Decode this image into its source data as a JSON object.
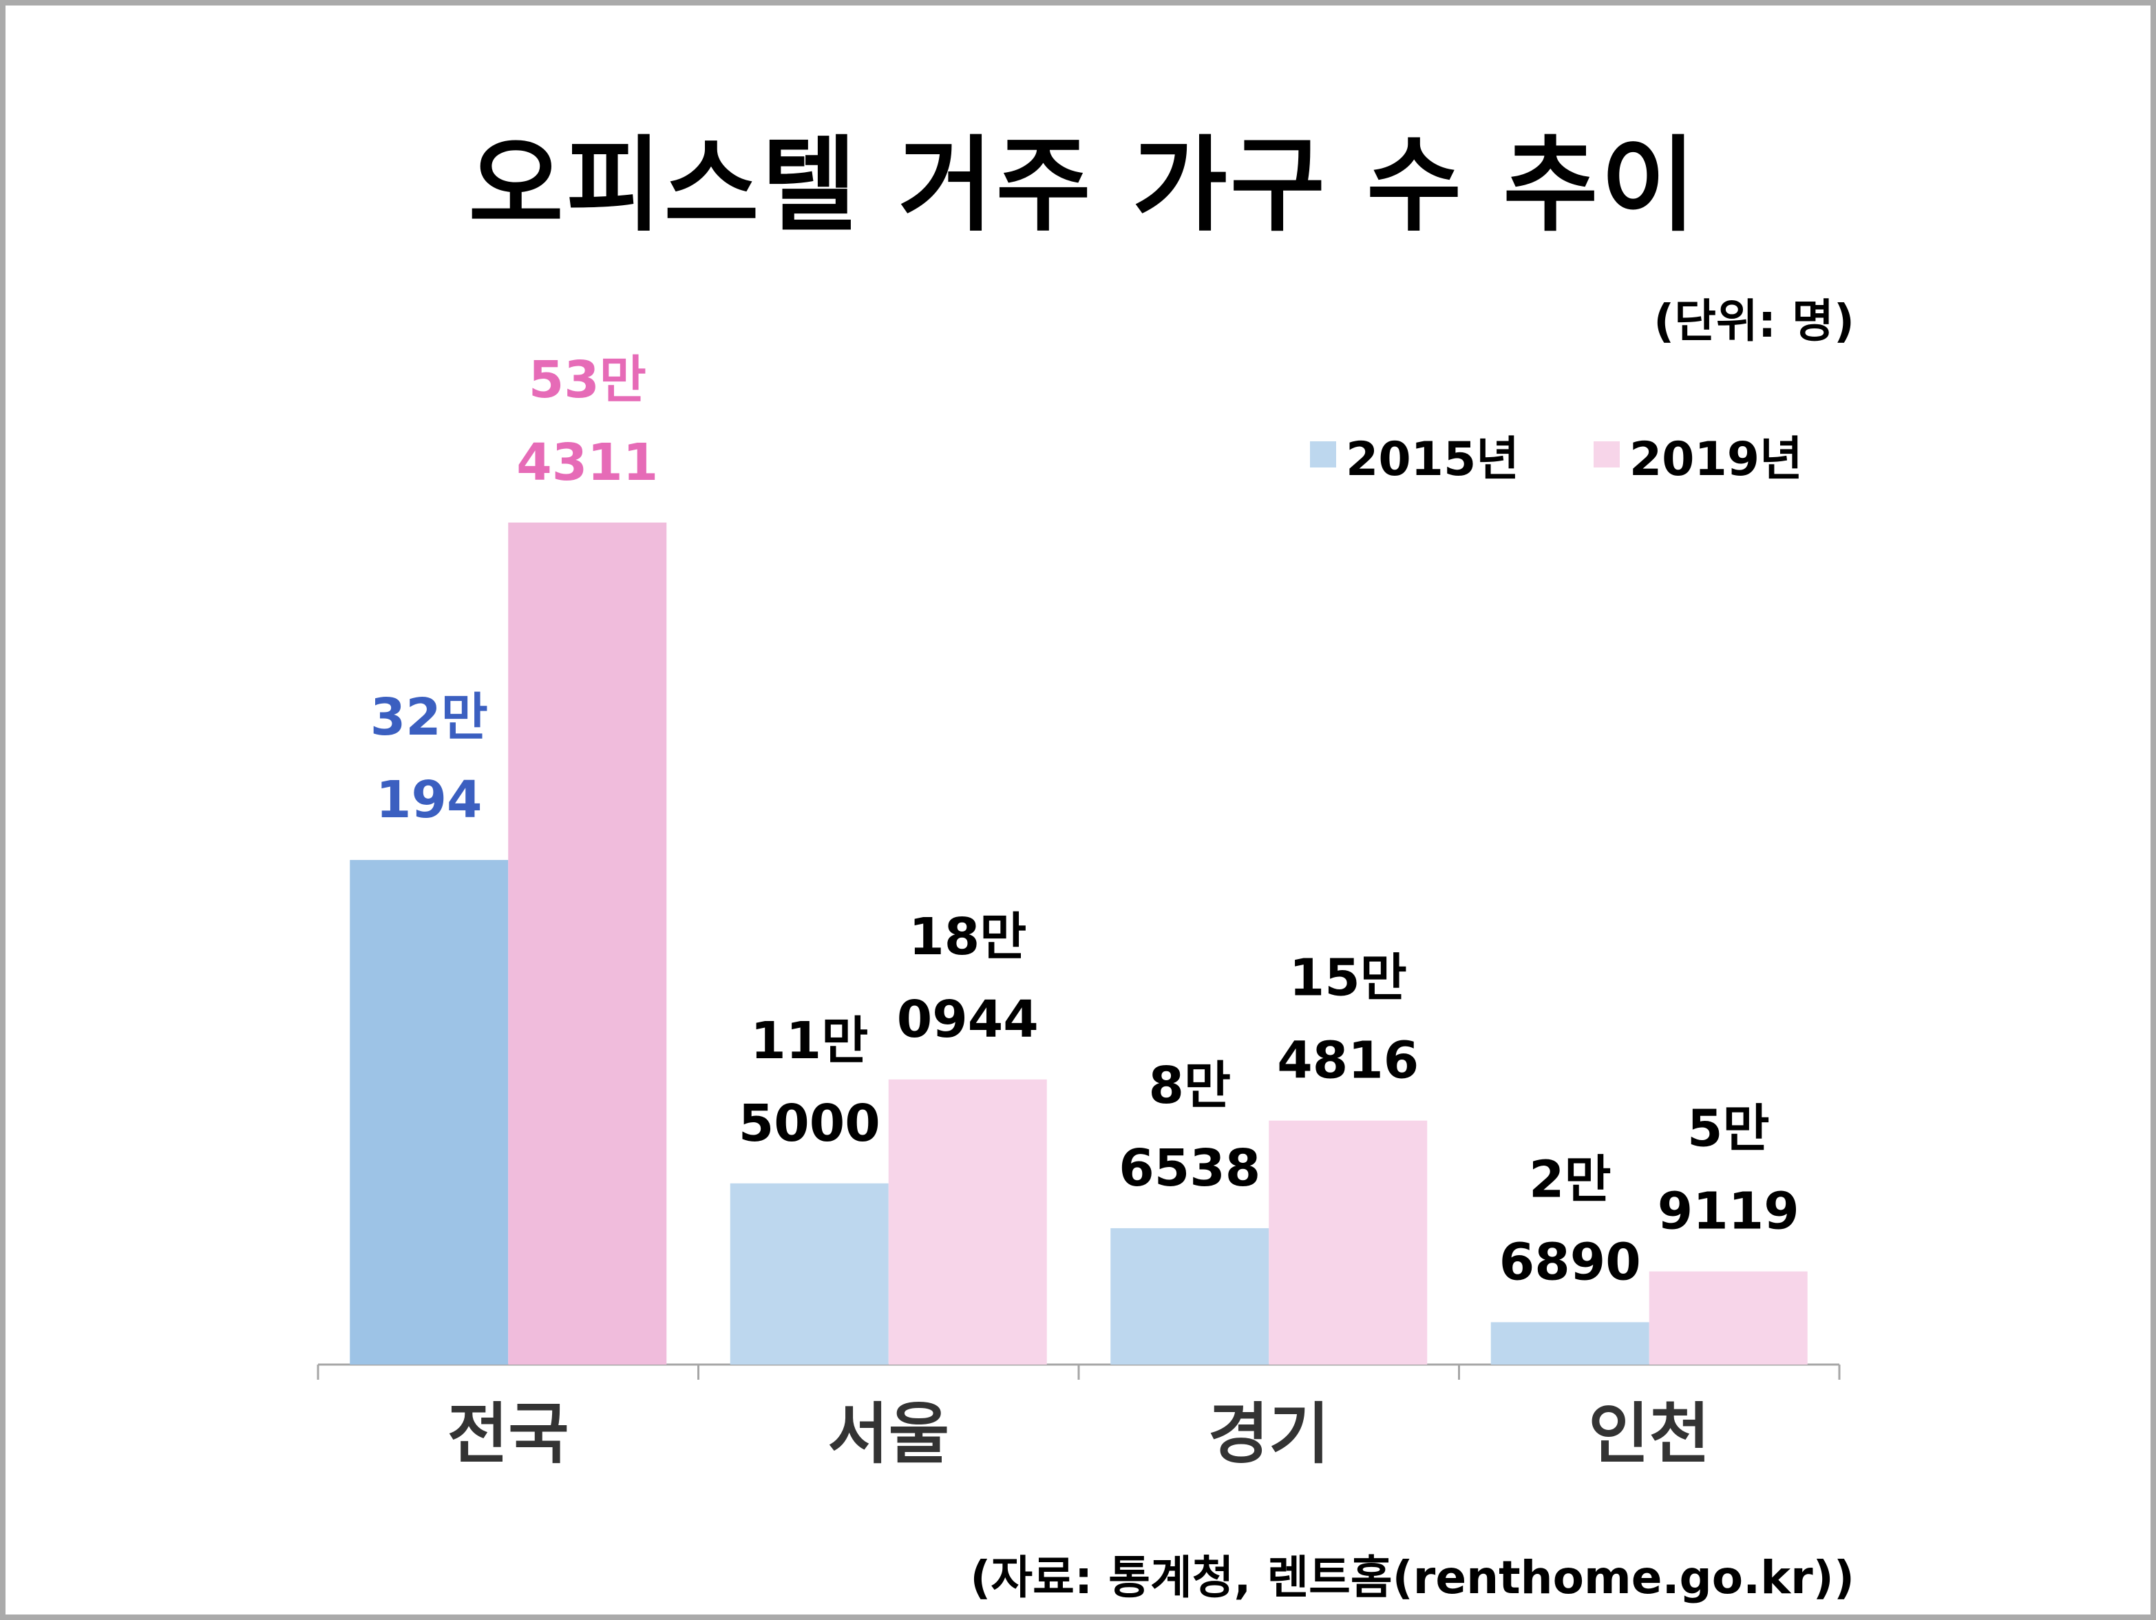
{
  "chart_data": {
    "type": "bar",
    "title": "오피스텔 거주 가구 수 추이",
    "unit_note": "(단위: 명)",
    "source": "(자료: 통계청, 렌트홈(renthome.go.kr))",
    "categories": [
      "전국",
      "서울",
      "경기",
      "인천"
    ],
    "series": [
      {
        "name": "2015년",
        "values": [
          320194,
          115000,
          86538,
          26890
        ],
        "labels": [
          [
            "32만",
            "194"
          ],
          [
            "11만",
            "5000"
          ],
          [
            "8만",
            "6538"
          ],
          [
            "2만",
            "6890"
          ]
        ],
        "colors": [
          "#9dc3e6",
          "#bdd7ee",
          "#bdd7ee",
          "#bdd7ee"
        ],
        "label_colors": [
          "#3b5fc0",
          "#000000",
          "#000000",
          "#000000"
        ]
      },
      {
        "name": "2019년",
        "values": [
          534311,
          180944,
          154816,
          59119
        ],
        "labels": [
          [
            "53만",
            "4311"
          ],
          [
            "18만",
            "0944"
          ],
          [
            "15만",
            "4816"
          ],
          [
            "5만",
            "9119"
          ]
        ],
        "colors": [
          "#f0bcdc",
          "#f7d5e9",
          "#f7d5e9",
          "#f7d5e9"
        ],
        "label_colors": [
          "#e66bb7",
          "#000000",
          "#000000",
          "#000000"
        ]
      }
    ],
    "legend_colors": [
      "#bdd7ee",
      "#f7d5e9"
    ],
    "ylim": [
      0,
      534311
    ],
    "grid": false,
    "legend_position": "top-right"
  }
}
